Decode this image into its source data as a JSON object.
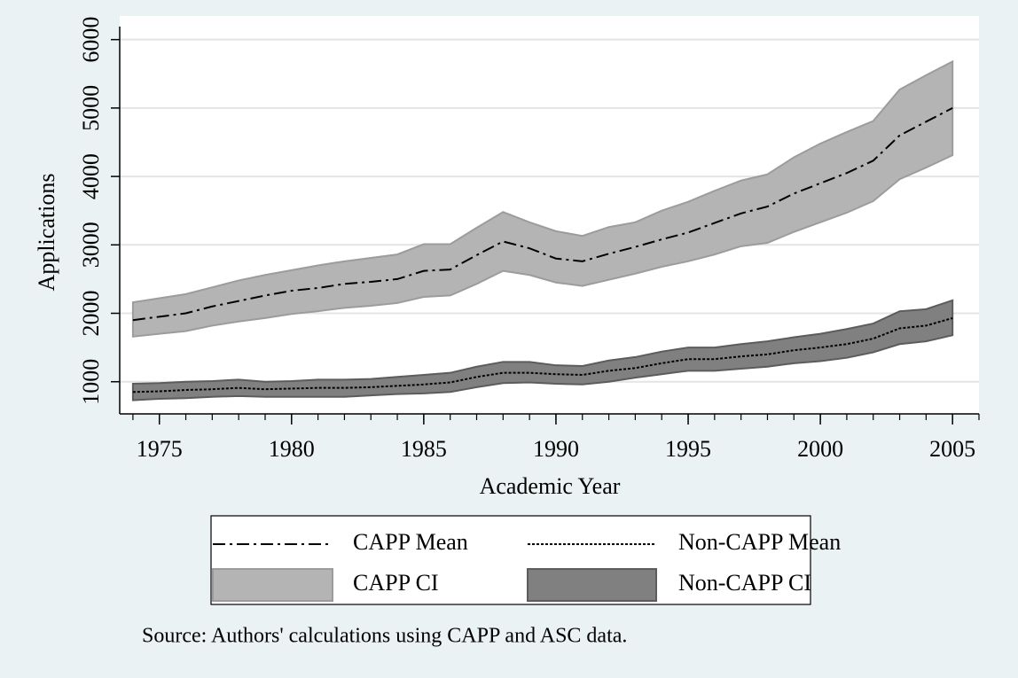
{
  "chart_data": {
    "type": "line",
    "x_label": "Academic Year",
    "y_label": "Applications",
    "note": "Source: Authors' calculations using CAPP and ASC data.",
    "x": [
      1974,
      1975,
      1976,
      1977,
      1978,
      1979,
      1980,
      1981,
      1982,
      1983,
      1984,
      1985,
      1986,
      1987,
      1988,
      1989,
      1990,
      1991,
      1992,
      1993,
      1994,
      1995,
      1996,
      1997,
      1998,
      1999,
      2000,
      2001,
      2002,
      2003,
      2004,
      2005
    ],
    "series": [
      {
        "name": "CAPP Mean",
        "kind": "line",
        "color": "#000000",
        "dash": "14,5,3,5",
        "values": [
          1900,
          1950,
          2000,
          2100,
          2180,
          2260,
          2330,
          2370,
          2430,
          2460,
          2500,
          2620,
          2640,
          2850,
          3050,
          2950,
          2800,
          2760,
          2870,
          2970,
          3080,
          3180,
          3320,
          3460,
          3560,
          3750,
          3900,
          4050,
          4230,
          4600,
          4800,
          5000
        ]
      },
      {
        "name": "Non-CAPP Mean",
        "kind": "line",
        "color": "#000000",
        "dash": "3,2",
        "values": [
          850,
          860,
          880,
          890,
          910,
          890,
          900,
          910,
          910,
          920,
          940,
          960,
          990,
          1070,
          1130,
          1130,
          1110,
          1100,
          1160,
          1200,
          1270,
          1330,
          1330,
          1370,
          1400,
          1460,
          1500,
          1550,
          1630,
          1780,
          1820,
          1930
        ]
      },
      {
        "name": "CAPP CI",
        "kind": "band",
        "color": "#b4b4b4",
        "edge": "#9c9c9c",
        "upper": [
          2160,
          2220,
          2280,
          2380,
          2480,
          2560,
          2630,
          2700,
          2760,
          2810,
          2860,
          3010,
          3010,
          3250,
          3480,
          3330,
          3200,
          3130,
          3260,
          3330,
          3500,
          3630,
          3790,
          3940,
          4030,
          4280,
          4480,
          4650,
          4810,
          5270,
          5480,
          5680
        ],
        "lower": [
          1660,
          1700,
          1740,
          1820,
          1880,
          1930,
          1990,
          2030,
          2080,
          2110,
          2150,
          2240,
          2260,
          2430,
          2620,
          2560,
          2450,
          2400,
          2490,
          2580,
          2680,
          2760,
          2860,
          2980,
          3030,
          3190,
          3330,
          3470,
          3640,
          3960,
          4130,
          4310
        ]
      },
      {
        "name": "Non-CAPP CI",
        "kind": "band",
        "color": "#808080",
        "edge": "#5c5c5c",
        "upper": [
          970,
          980,
          1000,
          1010,
          1030,
          1000,
          1010,
          1030,
          1030,
          1040,
          1070,
          1100,
          1130,
          1220,
          1290,
          1290,
          1240,
          1230,
          1310,
          1360,
          1440,
          1500,
          1500,
          1550,
          1590,
          1650,
          1700,
          1770,
          1850,
          2030,
          2060,
          2190
        ],
        "lower": [
          730,
          750,
          760,
          780,
          790,
          780,
          780,
          780,
          780,
          800,
          820,
          830,
          850,
          920,
          980,
          990,
          970,
          960,
          1000,
          1060,
          1110,
          1160,
          1160,
          1190,
          1220,
          1270,
          1300,
          1350,
          1430,
          1550,
          1590,
          1680
        ]
      }
    ],
    "xlim": [
      1973.5,
      2006
    ],
    "ylim": [
      530,
      6190
    ],
    "xticks": [
      1975,
      1980,
      1985,
      1990,
      1995,
      2000,
      2005
    ],
    "xminorticks": [
      1974,
      1975,
      1976,
      1977,
      1978,
      1979,
      1980,
      1981,
      1982,
      1983,
      1984,
      1985,
      1986,
      1987,
      1988,
      1989,
      1990,
      1991,
      1992,
      1993,
      1994,
      1995,
      1996,
      1997,
      1998,
      1999,
      2000,
      2001,
      2002,
      2003,
      2004,
      2005,
      2006
    ],
    "yticks": [
      1000,
      2000,
      3000,
      4000,
      5000,
      6000
    ],
    "grid": true,
    "legend": "bottom"
  }
}
